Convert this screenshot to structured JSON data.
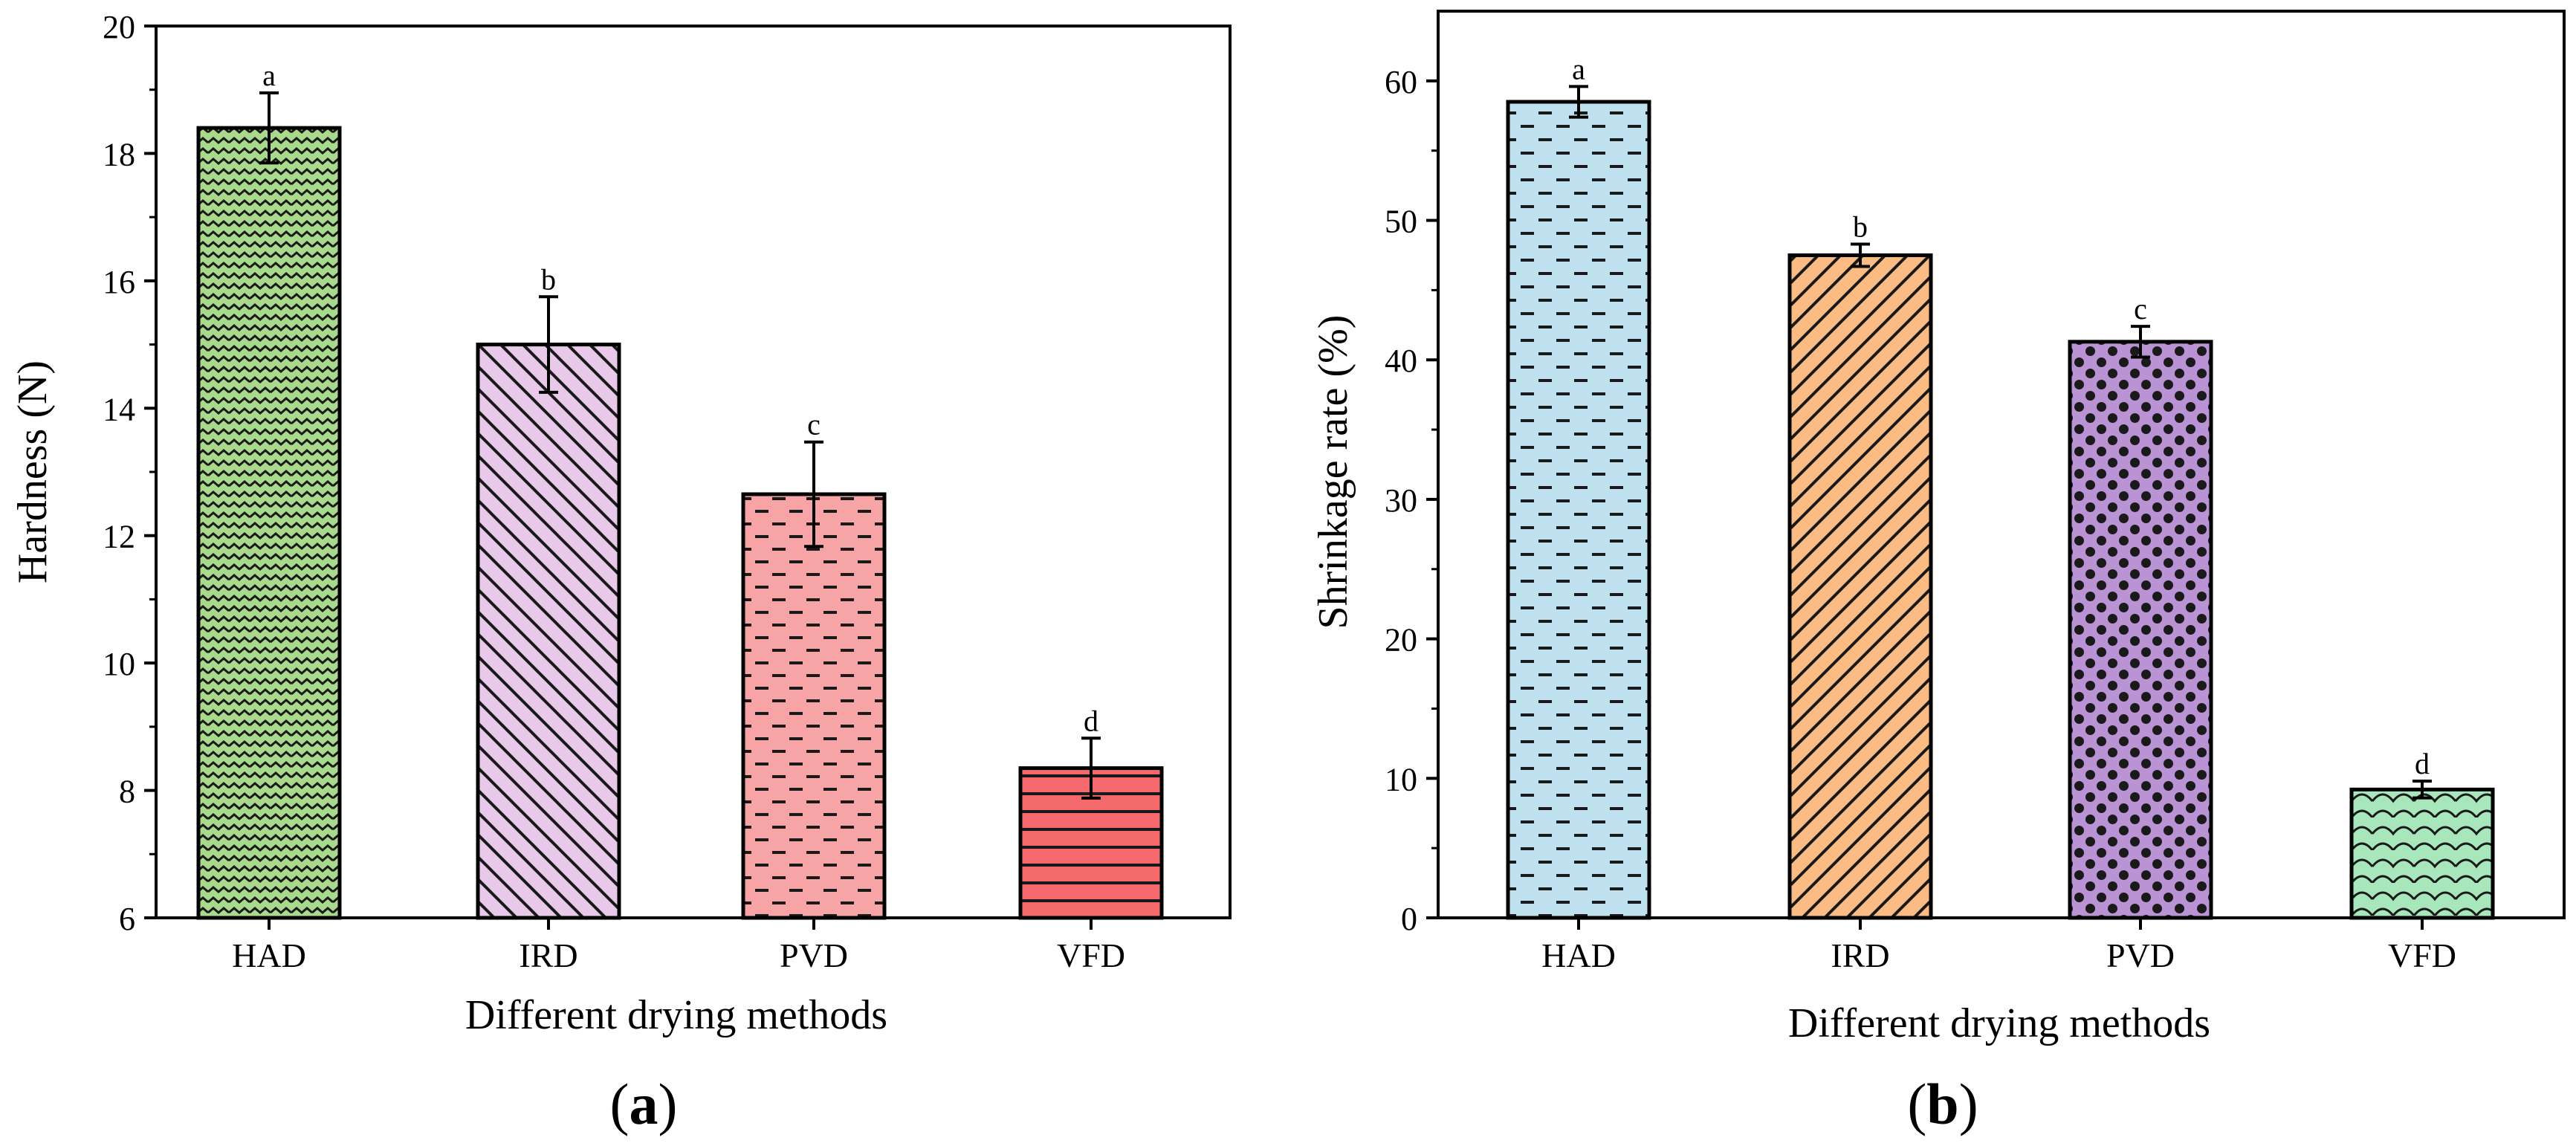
{
  "chart_data": [
    {
      "type": "bar",
      "panel_label": "a",
      "title": "",
      "xlabel": "Different drying methods",
      "ylabel": "Hardness (N)",
      "categories": [
        "HAD",
        "IRD",
        "PVD",
        "VFD"
      ],
      "values": [
        18.4,
        15.0,
        12.65,
        8.35
      ],
      "errors": [
        0.55,
        0.75,
        0.82,
        0.47
      ],
      "significance": [
        "a",
        "b",
        "c",
        "d"
      ],
      "colors": [
        "#a9d98a",
        "#e8c9e9",
        "#f7a4a6",
        "#f46a6c"
      ],
      "patterns": [
        "wave",
        "diagonal-back",
        "dash",
        "horizontal"
      ],
      "ylim": [
        6,
        20
      ],
      "yticks": [
        6,
        8,
        10,
        12,
        14,
        16,
        18,
        20
      ]
    },
    {
      "type": "bar",
      "panel_label": "b",
      "title": "",
      "xlabel": "Different drying methods",
      "ylabel": "Shrinkage rate (%)",
      "categories": [
        "HAD",
        "IRD",
        "PVD",
        "VFD"
      ],
      "values": [
        58.5,
        47.5,
        41.3,
        9.2
      ],
      "errors": [
        1.1,
        0.8,
        1.1,
        0.6
      ],
      "significance": [
        "a",
        "b",
        "c",
        "d"
      ],
      "colors": [
        "#bfe1ef",
        "#fbbc84",
        "#b993d3",
        "#a8e6bc"
      ],
      "patterns": [
        "dash",
        "diagonal",
        "dots",
        "scales"
      ],
      "ylim": [
        0,
        65
      ],
      "yticks": [
        0,
        10,
        20,
        30,
        40,
        50,
        60
      ]
    }
  ]
}
